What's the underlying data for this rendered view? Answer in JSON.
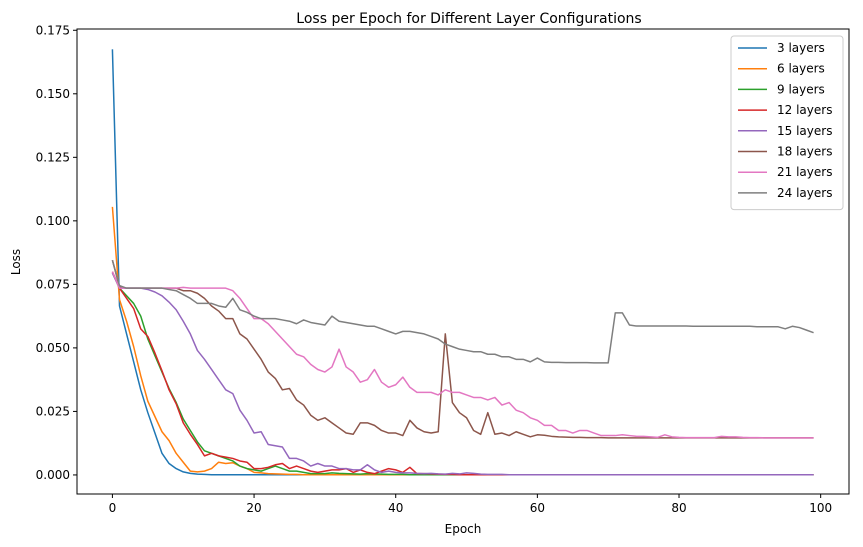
{
  "chart_data": {
    "type": "line",
    "title": "Loss per Epoch for Different Layer Configurations",
    "xlabel": "Epoch",
    "ylabel": "Loss",
    "xlim": [
      -5,
      104
    ],
    "ylim": [
      -0.0075,
      0.1755
    ],
    "xticks": [
      0,
      20,
      40,
      60,
      80,
      100
    ],
    "xtick_labels": [
      "0",
      "20",
      "40",
      "60",
      "80",
      "100"
    ],
    "yticks": [
      0,
      0.025,
      0.05,
      0.075,
      0.1,
      0.125,
      0.15,
      0.175
    ],
    "ytick_labels": [
      "0.000",
      "0.025",
      "0.050",
      "0.075",
      "0.100",
      "0.125",
      "0.150",
      "0.175"
    ],
    "grid": false,
    "legend_position": "top-right",
    "series": [
      {
        "name": "3 layers",
        "color": "#1f77b4",
        "values": [
          0.1675,
          0.0665,
          0.0555,
          0.0445,
          0.0335,
          0.0245,
          0.0165,
          0.0085,
          0.0045,
          0.0025,
          0.0012,
          0.0006,
          0.0003,
          0.0002,
          0.0001,
          0.0001,
          0.0001,
          0.0001,
          0.0001,
          0.0001,
          0.0001,
          0.0001,
          0.0001,
          0.0001,
          0.0001,
          0.0001,
          0.0001,
          0.0001,
          0.0001,
          0.0001,
          0.0001,
          0.0001,
          0.0001,
          0.0001,
          0.0001,
          0.0001,
          0.0001,
          0.0001,
          0.0001,
          0.0001,
          0.0001,
          0.0001,
          0.0001,
          0.0001,
          0.0001,
          0.0001,
          0.0001,
          0.0001,
          0.0001,
          0.0001,
          0.0001,
          0.0001,
          0.0001,
          0.0001,
          0.0001,
          0.0001,
          0.0001,
          0.0001,
          0.0001,
          0.0001,
          0.0001,
          0.0001,
          0.0001,
          0.0001,
          0.0001,
          0.0001,
          0.0001,
          0.0001,
          0.0001,
          0.0001,
          0.0001,
          0.0001,
          0.0001,
          0.0001,
          0.0001,
          0.0001,
          0.0001,
          0.0001,
          0.0001,
          0.0001,
          0.0001,
          0.0001,
          0.0001,
          0.0001,
          0.0001,
          0.0001,
          0.0001,
          0.0001,
          0.0001,
          0.0001,
          0.0001,
          0.0001,
          0.0001,
          0.0001,
          0.0001,
          0.0001,
          0.0001,
          0.0001,
          0.0001,
          0.0001
        ]
      },
      {
        "name": "6 layers",
        "color": "#ff7f0e",
        "values": [
          0.1055,
          0.069,
          0.0605,
          0.0505,
          0.039,
          0.029,
          0.023,
          0.017,
          0.0135,
          0.0085,
          0.005,
          0.0015,
          0.0012,
          0.0015,
          0.0025,
          0.005,
          0.0045,
          0.0048,
          0.0035,
          0.0025,
          0.001,
          0.0008,
          0.0005,
          0.0004,
          0.0003,
          0.0002,
          0.0002,
          0.0001,
          0.0001,
          0.0001,
          0.0001,
          0.0001,
          0.0001,
          0.0001,
          0.0001,
          0.0001,
          0.0001,
          0.0001,
          0.0001,
          0.0001,
          0.0001,
          0.0001,
          0.0001,
          0.0001,
          0.0001,
          0.0001,
          0.0001,
          0.0001,
          0.0001,
          0.0001,
          0.0001,
          0.0001,
          0.0001,
          0.0001,
          0.0001,
          0.0001,
          0.0001,
          0.0001,
          0.0001,
          0.0001,
          0.0001,
          0.0001,
          0.0001,
          0.0001,
          0.0001,
          0.0001,
          0.0001,
          0.0001,
          0.0001,
          0.0001,
          0.0001,
          0.0001,
          0.0001,
          0.0001,
          0.0001,
          0.0001,
          0.0001,
          0.0001,
          0.0001,
          0.0001,
          0.0001,
          0.0001,
          0.0001,
          0.0001,
          0.0001,
          0.0001,
          0.0001,
          0.0001,
          0.0001,
          0.0001,
          0.0001,
          0.0001,
          0.0001,
          0.0001,
          0.0001,
          0.0001,
          0.0001,
          0.0001,
          0.0001,
          0.0001
        ]
      },
      {
        "name": "9 layers",
        "color": "#2ca02c",
        "values": [
          0.0795,
          0.0735,
          0.0705,
          0.0675,
          0.0625,
          0.0535,
          0.047,
          0.0405,
          0.034,
          0.0285,
          0.022,
          0.0175,
          0.013,
          0.0095,
          0.0085,
          0.0075,
          0.0065,
          0.0055,
          0.0035,
          0.0025,
          0.002,
          0.0015,
          0.0025,
          0.0035,
          0.0025,
          0.0015,
          0.0015,
          0.001,
          0.0005,
          0.0005,
          0.0005,
          0.0008,
          0.0006,
          0.0005,
          0.0004,
          0.0003,
          0.0005,
          0.0004,
          0.0003,
          0.0002,
          0.0002,
          0.0002,
          0.0001,
          0.0001,
          0.0001,
          0.0001,
          0.0001,
          0.0001,
          0.0001,
          0.0001,
          0.0001,
          0.0001,
          0.0001,
          0.0001,
          0.0001,
          0.0001,
          0.0001,
          0.0001,
          0.0001,
          0.0001,
          0.0001,
          0.0001,
          0.0001,
          0.0001,
          0.0001,
          0.0001,
          0.0001,
          0.0001,
          0.0001,
          0.0001,
          0.0001,
          0.0001,
          0.0001,
          0.0001,
          0.0001,
          0.0001,
          0.0001,
          0.0001,
          0.0001,
          0.0001,
          0.0001,
          0.0001,
          0.0001,
          0.0001,
          0.0001,
          0.0001,
          0.0001,
          0.0001,
          0.0001,
          0.0001,
          0.0001,
          0.0001,
          0.0001,
          0.0001,
          0.0001,
          0.0001,
          0.0001,
          0.0001,
          0.0001,
          0.0001
        ]
      },
      {
        "name": "12 layers",
        "color": "#d62728",
        "values": [
          0.08,
          0.0735,
          0.0695,
          0.0655,
          0.0575,
          0.0545,
          0.048,
          0.041,
          0.0335,
          0.028,
          0.0205,
          0.016,
          0.012,
          0.0075,
          0.0085,
          0.0075,
          0.007,
          0.0065,
          0.0055,
          0.005,
          0.0025,
          0.0025,
          0.003,
          0.004,
          0.0045,
          0.0025,
          0.0035,
          0.0025,
          0.0015,
          0.001,
          0.0015,
          0.002,
          0.002,
          0.0025,
          0.001,
          0.002,
          0.001,
          0.0005,
          0.0015,
          0.0025,
          0.002,
          0.001,
          0.003,
          0.0005,
          0.0005,
          0.0004,
          0.0003,
          0.0002,
          0.0002,
          0.0001,
          0.0001,
          0.0001,
          0.0001,
          0.0001,
          0.0001,
          0.0001,
          0.0001,
          0.0001,
          0.0001,
          0.0001,
          0.0001,
          0.0001,
          0.0001,
          0.0001,
          0.0001,
          0.0001,
          0.0001,
          0.0001,
          0.0001,
          0.0001,
          0.0001,
          0.0001,
          0.0001,
          0.0001,
          0.0001,
          0.0001,
          0.0001,
          0.0001,
          0.0001,
          0.0001,
          0.0001,
          0.0001,
          0.0001,
          0.0001,
          0.0001,
          0.0001,
          0.0001,
          0.0001,
          0.0001,
          0.0001,
          0.0001,
          0.0001,
          0.0001,
          0.0001,
          0.0001,
          0.0001,
          0.0001,
          0.0001,
          0.0001,
          0.0001
        ]
      },
      {
        "name": "15 layers",
        "color": "#9467bd",
        "values": [
          0.0795,
          0.0735,
          0.0735,
          0.0735,
          0.0735,
          0.073,
          0.072,
          0.0705,
          0.068,
          0.065,
          0.0605,
          0.0555,
          0.049,
          0.0455,
          0.0415,
          0.0375,
          0.0335,
          0.032,
          0.0255,
          0.0215,
          0.0165,
          0.017,
          0.012,
          0.0115,
          0.011,
          0.0065,
          0.0065,
          0.0055,
          0.0035,
          0.0045,
          0.0035,
          0.0035,
          0.0025,
          0.0025,
          0.002,
          0.002,
          0.004,
          0.002,
          0.001,
          0.0015,
          0.001,
          0.0008,
          0.0008,
          0.0006,
          0.0005,
          0.0006,
          0.0004,
          0.0003,
          0.0006,
          0.0004,
          0.0008,
          0.0006,
          0.0003,
          0.0002,
          0.0002,
          0.0002,
          0.0001,
          0.0001,
          0.0001,
          0.0001,
          0.0001,
          0.0001,
          0.0001,
          0.0001,
          0.0001,
          0.0001,
          0.0001,
          0.0001,
          0.0001,
          0.0001,
          0.0001,
          0.0001,
          0.0001,
          0.0001,
          0.0001,
          0.0001,
          0.0001,
          0.0001,
          0.0001,
          0.0001,
          0.0001,
          0.0001,
          0.0001,
          0.0001,
          0.0001,
          0.0001,
          0.0001,
          0.0001,
          0.0001,
          0.0001,
          0.0001,
          0.0001,
          0.0001,
          0.0001,
          0.0001,
          0.0001,
          0.0001,
          0.0001,
          0.0001,
          0.0001
        ]
      },
      {
        "name": "18 layers",
        "color": "#8c564b",
        "values": [
          0.0845,
          0.074,
          0.0735,
          0.0735,
          0.0735,
          0.0735,
          0.0735,
          0.0735,
          0.0735,
          0.0735,
          0.0725,
          0.0725,
          0.0715,
          0.0695,
          0.0665,
          0.0645,
          0.0615,
          0.0615,
          0.0555,
          0.0535,
          0.0495,
          0.0455,
          0.0405,
          0.038,
          0.0335,
          0.034,
          0.0295,
          0.0275,
          0.0235,
          0.0215,
          0.0225,
          0.0205,
          0.0185,
          0.0165,
          0.016,
          0.0205,
          0.0205,
          0.0195,
          0.0175,
          0.0165,
          0.0165,
          0.0155,
          0.0215,
          0.0185,
          0.017,
          0.0165,
          0.017,
          0.0555,
          0.0285,
          0.0245,
          0.0225,
          0.0175,
          0.016,
          0.0245,
          0.016,
          0.0165,
          0.0155,
          0.017,
          0.016,
          0.015,
          0.0158,
          0.0156,
          0.0152,
          0.015,
          0.0149,
          0.0148,
          0.0148,
          0.0147,
          0.0147,
          0.0147,
          0.0146,
          0.0146,
          0.0146,
          0.0146,
          0.0146,
          0.0146,
          0.0146,
          0.0146,
          0.0146,
          0.0146,
          0.0146,
          0.0146,
          0.0146,
          0.0146,
          0.0146,
          0.0146,
          0.0146,
          0.0146,
          0.0146,
          0.0146,
          0.0146,
          0.0146,
          0.0146,
          0.0146,
          0.0146,
          0.0146,
          0.0146,
          0.0146,
          0.0146,
          0.0146
        ]
      },
      {
        "name": "21 layers",
        "color": "#e377c2",
        "values": [
          0.08,
          0.0735,
          0.0735,
          0.0735,
          0.0735,
          0.0735,
          0.0735,
          0.0735,
          0.0735,
          0.0735,
          0.0738,
          0.0735,
          0.0735,
          0.0735,
          0.0735,
          0.0735,
          0.0735,
          0.0725,
          0.0695,
          0.0655,
          0.0615,
          0.0615,
          0.0595,
          0.0565,
          0.0535,
          0.0505,
          0.0475,
          0.0465,
          0.0435,
          0.0415,
          0.0405,
          0.0425,
          0.0495,
          0.0425,
          0.0405,
          0.0365,
          0.0375,
          0.0415,
          0.0365,
          0.0345,
          0.0355,
          0.0385,
          0.0345,
          0.0325,
          0.0325,
          0.0325,
          0.0315,
          0.0335,
          0.0325,
          0.0325,
          0.0315,
          0.0305,
          0.0305,
          0.0295,
          0.0305,
          0.0275,
          0.0285,
          0.0255,
          0.0245,
          0.0225,
          0.0215,
          0.0195,
          0.0195,
          0.0175,
          0.0175,
          0.0165,
          0.0175,
          0.0175,
          0.0165,
          0.0155,
          0.0155,
          0.0155,
          0.0158,
          0.0155,
          0.0152,
          0.0152,
          0.015,
          0.0148,
          0.0158,
          0.015,
          0.0148,
          0.0147,
          0.0147,
          0.0147,
          0.0147,
          0.0147,
          0.0152,
          0.015,
          0.015,
          0.0148,
          0.0147,
          0.0147,
          0.0146,
          0.0146,
          0.0146,
          0.0146,
          0.0146,
          0.0146,
          0.0146,
          0.0146
        ]
      },
      {
        "name": "24 layers",
        "color": "#7f7f7f",
        "values": [
          0.0845,
          0.0745,
          0.0735,
          0.0735,
          0.0735,
          0.0735,
          0.0735,
          0.0735,
          0.073,
          0.0725,
          0.071,
          0.0695,
          0.0675,
          0.0675,
          0.0675,
          0.0665,
          0.066,
          0.0695,
          0.065,
          0.064,
          0.0625,
          0.0615,
          0.0615,
          0.0615,
          0.061,
          0.0605,
          0.0595,
          0.061,
          0.06,
          0.0595,
          0.059,
          0.0625,
          0.0605,
          0.06,
          0.0595,
          0.059,
          0.0585,
          0.0585,
          0.0575,
          0.0565,
          0.0555,
          0.0565,
          0.0565,
          0.056,
          0.0555,
          0.0545,
          0.0535,
          0.0515,
          0.0505,
          0.0495,
          0.049,
          0.0485,
          0.0485,
          0.0475,
          0.0475,
          0.0465,
          0.0465,
          0.0455,
          0.0455,
          0.0445,
          0.046,
          0.0445,
          0.0443,
          0.0443,
          0.0442,
          0.0442,
          0.0442,
          0.0442,
          0.0441,
          0.0441,
          0.0441,
          0.0638,
          0.0638,
          0.059,
          0.0586,
          0.0586,
          0.0586,
          0.0586,
          0.0586,
          0.0586,
          0.0586,
          0.0586,
          0.0585,
          0.0585,
          0.0585,
          0.0585,
          0.0585,
          0.0585,
          0.0585,
          0.0585,
          0.0585,
          0.0583,
          0.0583,
          0.0583,
          0.0583,
          0.0575,
          0.0585,
          0.058,
          0.057,
          0.056
        ]
      }
    ]
  }
}
